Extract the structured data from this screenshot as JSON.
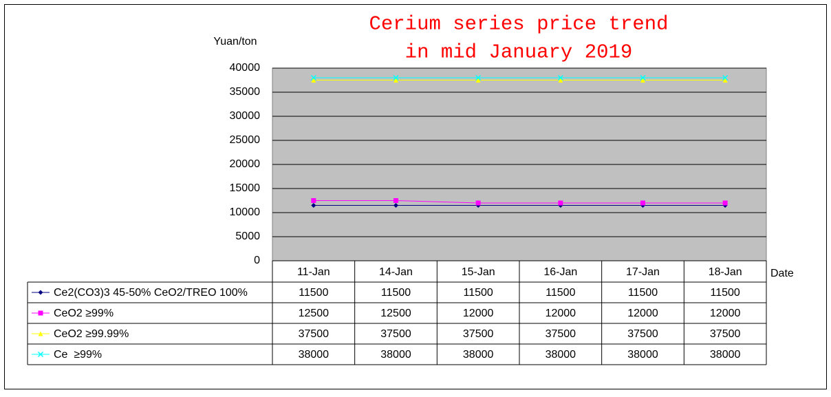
{
  "chart_data": {
    "type": "line",
    "title": "Cerium series price trend",
    "subtitle": "in mid January 2019",
    "y_label": "Yuan/ton",
    "x_label": "Date",
    "categories": [
      "11-Jan",
      "14-Jan",
      "15-Jan",
      "16-Jan",
      "17-Jan",
      "18-Jan"
    ],
    "series": [
      {
        "name": "Ce2(CO3)3 45-50% CeO2/TREO 100%",
        "color": "#000080",
        "marker": "diamond",
        "values": [
          11500,
          11500,
          11500,
          11500,
          11500,
          11500
        ]
      },
      {
        "name": "CeO2 ≥99%",
        "color": "#ff00ff",
        "marker": "square",
        "values": [
          12500,
          12500,
          12000,
          12000,
          12000,
          12000
        ]
      },
      {
        "name": "CeO2 ≥99.99%",
        "color": "#ffff00",
        "marker": "triangle",
        "values": [
          37500,
          37500,
          37500,
          37500,
          37500,
          37500
        ]
      },
      {
        "name": "Ce  ≥99%",
        "color": "#00ffff",
        "marker": "x",
        "values": [
          38000,
          38000,
          38000,
          38000,
          38000,
          38000
        ]
      }
    ],
    "ylim": [
      0,
      40000
    ],
    "yticks": [
      0,
      5000,
      10000,
      15000,
      20000,
      25000,
      30000,
      35000,
      40000
    ],
    "grid": true,
    "plot_background": "#c0c0c0",
    "data_table": true
  }
}
